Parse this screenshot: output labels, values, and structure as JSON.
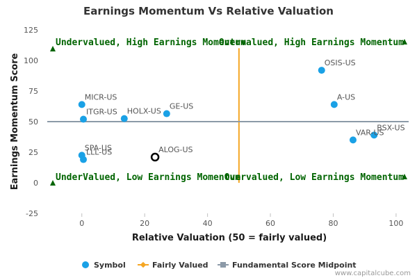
{
  "chart_data": {
    "type": "scatter",
    "title": "Earnings Momentum Vs Relative Valuation",
    "xlabel": "Relative Valuation (50 = fairly valued)",
    "ylabel": "Earnings Momentum Score",
    "xlim": [
      -11,
      104
    ],
    "ylim": [
      -25,
      125
    ],
    "x_ticks": [
      0,
      20,
      40,
      60,
      80,
      100
    ],
    "y_ticks": [
      -25,
      0,
      25,
      50,
      75,
      100,
      125
    ],
    "grid": false,
    "legend_position": "bottom-center",
    "colors": {
      "symbol": "#1aa1e6",
      "fairly_valued": "#f5a623",
      "midpoint": "#8c9aa8",
      "quadrant_text": "#006400",
      "highlight_stroke": "#000000"
    },
    "series": [
      {
        "name": "Symbol",
        "points": [
          {
            "label": "OSIS-US",
            "x": 76.3,
            "y": 92
          },
          {
            "label": "A-US",
            "x": 80.3,
            "y": 64
          },
          {
            "label": "BSX-US",
            "x": 93,
            "y": 39
          },
          {
            "label": "VAR-US",
            "x": 86.3,
            "y": 35
          },
          {
            "label": "MICR-US",
            "x": 0,
            "y": 64
          },
          {
            "label": "ITGR-US",
            "x": 0.5,
            "y": 52
          },
          {
            "label": "HOLX-US",
            "x": 13.5,
            "y": 52.5
          },
          {
            "label": "GE-US",
            "x": 27,
            "y": 56.5
          },
          {
            "label": "SPA-US",
            "x": 0,
            "y": 22.5
          },
          {
            "label": "LLL-US",
            "x": 0.5,
            "y": 19
          }
        ]
      },
      {
        "name": "Fairly Valued",
        "x": 50,
        "y_range": [
          0,
          110
        ]
      },
      {
        "name": "Fundamental Score Midpoint",
        "y": 50,
        "x_range": [
          -11,
          104
        ]
      }
    ],
    "highlighted_point": {
      "label": "ALOG-US",
      "x": 23.3,
      "y": 21
    },
    "quadrant_labels": [
      "Undervalued, High Earnings Momentum",
      "Overvalued, High Earnings Momentum",
      "UnderValued, Low Earnings Momentum",
      "Overvalued, Low Earnings Momentum"
    ]
  },
  "legend": {
    "items": [
      "Symbol",
      "Fairly Valued",
      "Fundamental Score Midpoint"
    ]
  },
  "credit": "www.capitalcube.com"
}
